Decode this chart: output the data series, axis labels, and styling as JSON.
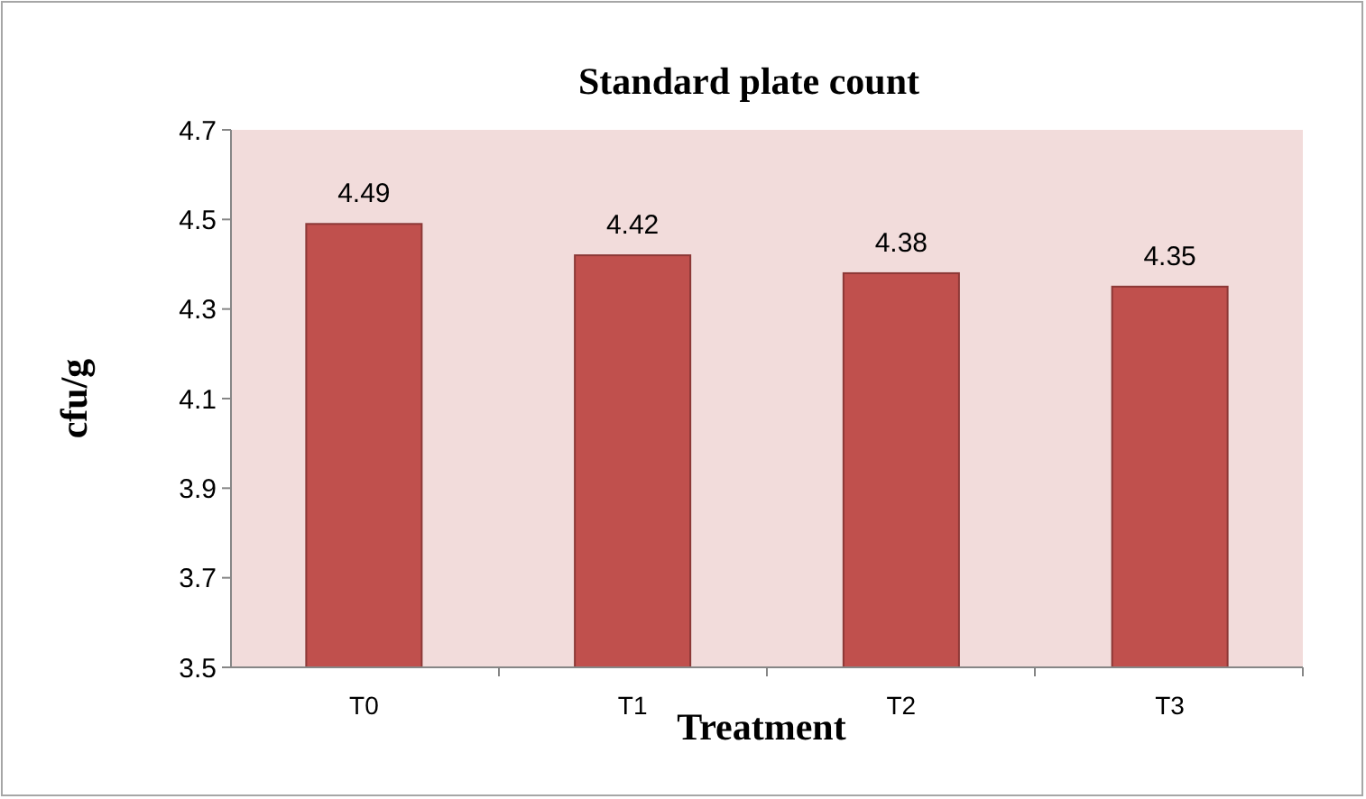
{
  "chart_data": {
    "type": "bar",
    "title": "Standard plate count",
    "xlabel": "Treatment",
    "ylabel": "cfu/g",
    "categories": [
      "T0",
      "T1",
      "T2",
      "T3"
    ],
    "values": [
      4.49,
      4.42,
      4.38,
      4.35
    ],
    "color": "#c0504d",
    "ylim": [
      3.5,
      4.7
    ],
    "yticks": [
      3.5,
      3.7,
      3.9,
      4.1,
      4.3,
      4.5,
      4.7
    ],
    "data_labels": true,
    "grid": false
  }
}
